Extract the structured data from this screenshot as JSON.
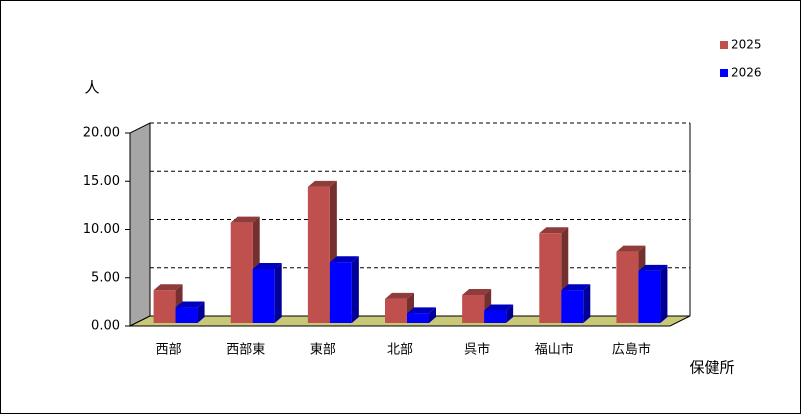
{
  "chart_data": {
    "type": "bar3d",
    "y_label": "人",
    "x_label": "保健所",
    "categories": [
      "西部",
      "西部東",
      "東部",
      "北部",
      "呉市",
      "福山市",
      "広島市"
    ],
    "series": [
      {
        "name": "2025",
        "color": "#c0504d",
        "values": [
          3.4,
          10.4,
          14.1,
          2.5,
          2.9,
          9.3,
          7.4
        ]
      },
      {
        "name": "2026",
        "color": "#0000ff",
        "values": [
          1.6,
          5.6,
          6.3,
          1.0,
          1.3,
          3.4,
          5.4
        ]
      }
    ],
    "ylim": [
      0,
      20
    ],
    "yticks": [
      {
        "value": 0,
        "label": "0.00"
      },
      {
        "value": 5,
        "label": "5.00"
      },
      {
        "value": 10,
        "label": "10.00"
      },
      {
        "value": 15,
        "label": "15.00"
      },
      {
        "value": 20,
        "label": "20.00"
      }
    ],
    "grid": true
  }
}
